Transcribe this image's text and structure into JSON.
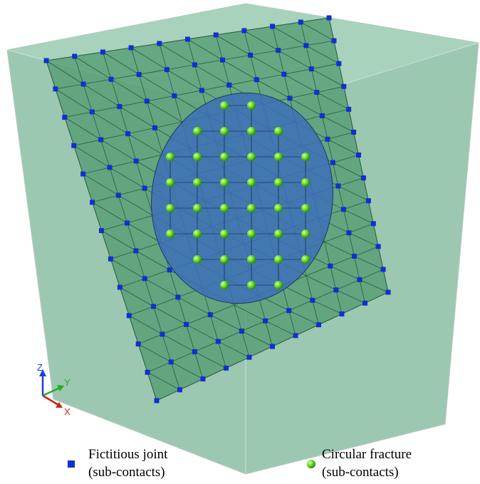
{
  "axes": {
    "z": "Z",
    "y": "Y",
    "x": "X"
  },
  "legend": [
    {
      "label": "Fictitious joint",
      "sublabel": "(sub-contacts)"
    },
    {
      "label": "Circular fracture",
      "sublabel": "(sub-contacts)"
    }
  ]
}
